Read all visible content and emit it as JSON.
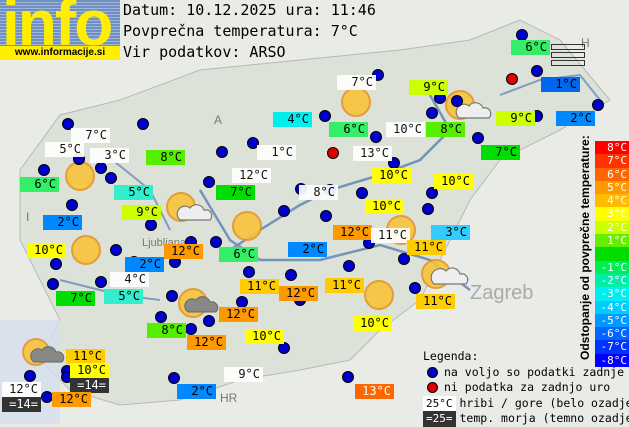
{
  "logo": {
    "text": "info",
    "url": "www.informacije.si"
  },
  "header": {
    "date_line": "Datum: 10.12.2025 ura: 11:46",
    "avg_line": "Povprečna temperatura: 7°C",
    "source_line": "Vir podatkov: ARSO"
  },
  "map_labels": {
    "austria": "A",
    "italy": "I",
    "croatia": "HR",
    "hungary": "H",
    "zagreb": "Zagreb",
    "ljubljana": "Ljubljana"
  },
  "stations": [
    "6°C",
    "1°C",
    "2°C",
    "9°C",
    "7°C",
    "8°C",
    "10°C",
    "9°C",
    "7°C",
    "6°C",
    "4°C",
    "13°C",
    "10°C",
    "10°C",
    "10°C",
    "8°C",
    "1°C",
    "12°C",
    "7°C",
    "8°C",
    "7°C",
    "5°C",
    "3°C",
    "6°C",
    "5°C",
    "9°C",
    "2°C",
    "10°C",
    "12°C",
    "6°C",
    "2°C",
    "12°C",
    "11°C",
    "3°C",
    "11°C",
    "2°C",
    "4°C",
    "7°C",
    "5°C",
    "11°C",
    "12°C",
    "11°C",
    "11°C",
    "12°C",
    "10°C",
    "8°C",
    "12°C",
    "10°C",
    "11°C",
    "10°C",
    "=14=",
    "12°C",
    "=14=",
    "12°C",
    "2°C",
    "9°C",
    "13°C"
  ],
  "scale": {
    "title": "Odstopanje od povprečne temperature:",
    "steps": [
      {
        "label": "8°C",
        "color": "#ff0000"
      },
      {
        "label": "7°C",
        "color": "#ff3300"
      },
      {
        "label": "6°C",
        "color": "#ff6600"
      },
      {
        "label": "5°C",
        "color": "#ff9900"
      },
      {
        "label": "4°C",
        "color": "#ffbb00"
      },
      {
        "label": "3°C",
        "color": "#ffff00"
      },
      {
        "label": "2°C",
        "color": "#ccff00"
      },
      {
        "label": "1°C",
        "color": "#66ee00"
      },
      {
        "label": "",
        "color": "#00dd00"
      },
      {
        "label": "-1°C",
        "color": "#00ee55"
      },
      {
        "label": "-2°C",
        "color": "#00eeaa"
      },
      {
        "label": "-3°C",
        "color": "#00eeee"
      },
      {
        "label": "-4°C",
        "color": "#00ccff"
      },
      {
        "label": "-5°C",
        "color": "#0099ff"
      },
      {
        "label": "-6°C",
        "color": "#0066ff"
      },
      {
        "label": "-7°C",
        "color": "#0033ff"
      },
      {
        "label": "-8°C",
        "color": "#0000ff"
      }
    ]
  },
  "legend": {
    "title": "Legenda:",
    "available": "na voljo so podatki zadnje ure",
    "missing": "ni podatka za zadnjo uro",
    "hill_sample": "25°C",
    "hill": "hribi / gore (belo ozadje)",
    "sea_sample": "=25=",
    "sea": "temp. morja (temno ozadje)"
  }
}
